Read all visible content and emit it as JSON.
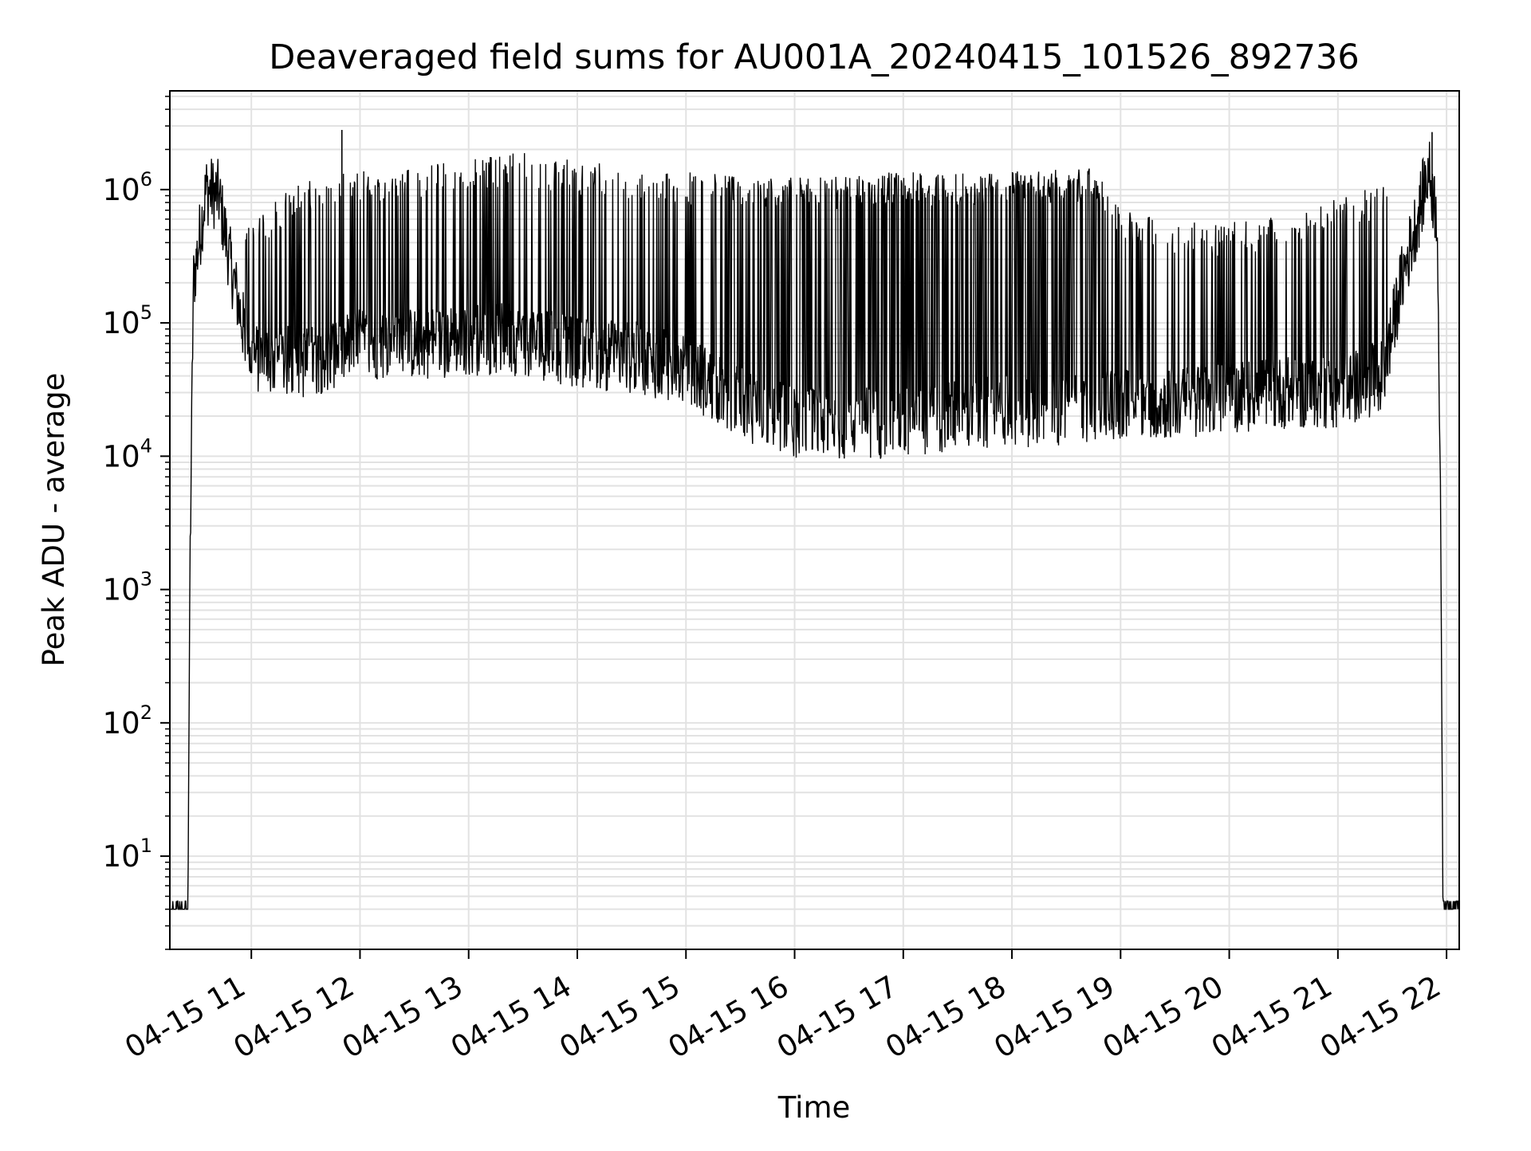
{
  "chart_data": {
    "type": "line",
    "title": "Deaveraged field sums for AU001A_20240415_101526_892736",
    "xlabel": "Time",
    "ylabel": "Peak ADU - average",
    "yscale": "log",
    "xlim": [
      "2024-04-15 10:15",
      "2024-04-15 22:07"
    ],
    "ylim": [
      2,
      5500000
    ],
    "grid": true,
    "x_ticks": [
      {
        "value": "2024-04-15 11:00",
        "label": "04-15 11"
      },
      {
        "value": "2024-04-15 12:00",
        "label": "04-15 12"
      },
      {
        "value": "2024-04-15 13:00",
        "label": "04-15 13"
      },
      {
        "value": "2024-04-15 14:00",
        "label": "04-15 14"
      },
      {
        "value": "2024-04-15 15:00",
        "label": "04-15 15"
      },
      {
        "value": "2024-04-15 16:00",
        "label": "04-15 16"
      },
      {
        "value": "2024-04-15 17:00",
        "label": "04-15 17"
      },
      {
        "value": "2024-04-15 18:00",
        "label": "04-15 18"
      },
      {
        "value": "2024-04-15 19:00",
        "label": "04-15 19"
      },
      {
        "value": "2024-04-15 20:00",
        "label": "04-15 20"
      },
      {
        "value": "2024-04-15 21:00",
        "label": "04-15 21"
      },
      {
        "value": "2024-04-15 22:00",
        "label": "04-15 22"
      }
    ],
    "y_ticks": [
      {
        "value": 10,
        "base": "10",
        "exp": "1"
      },
      {
        "value": 100,
        "base": "10",
        "exp": "2"
      },
      {
        "value": 1000,
        "base": "10",
        "exp": "3"
      },
      {
        "value": 10000,
        "base": "10",
        "exp": "4"
      },
      {
        "value": 100000,
        "base": "10",
        "exp": "5"
      },
      {
        "value": 1000000,
        "base": "10",
        "exp": "6"
      }
    ],
    "series": [
      {
        "color": "#000000",
        "baseline_envelope": [
          [
            "2024-04-15 10:15",
            4
          ],
          [
            "2024-04-15 10:25",
            4
          ],
          [
            "2024-04-15 10:26",
            1000
          ],
          [
            "2024-04-15 10:28",
            200000
          ],
          [
            "2024-04-15 10:35",
            1000000
          ],
          [
            "2024-04-15 10:42",
            900000
          ],
          [
            "2024-04-15 10:48",
            300000
          ],
          [
            "2024-04-15 10:55",
            100000
          ],
          [
            "2024-04-15 11:00",
            55000
          ],
          [
            "2024-04-15 11:30",
            50000
          ],
          [
            "2024-04-15 12:00",
            70000
          ],
          [
            "2024-04-15 12:30",
            70000
          ],
          [
            "2024-04-15 13:00",
            75000
          ],
          [
            "2024-04-15 13:30",
            75000
          ],
          [
            "2024-04-15 14:00",
            60000
          ],
          [
            "2024-04-15 14:30",
            55000
          ],
          [
            "2024-04-15 15:00",
            45000
          ],
          [
            "2024-04-15 15:30",
            25000
          ],
          [
            "2024-04-15 16:00",
            18000
          ],
          [
            "2024-04-15 16:30",
            18000
          ],
          [
            "2024-04-15 17:00",
            18000
          ],
          [
            "2024-04-15 17:30",
            20000
          ],
          [
            "2024-04-15 18:00",
            22000
          ],
          [
            "2024-04-15 18:30",
            22000
          ],
          [
            "2024-04-15 18:50",
            25000
          ],
          [
            "2024-04-15 19:30",
            25000
          ],
          [
            "2024-04-15 20:00",
            28000
          ],
          [
            "2024-04-15 20:30",
            30000
          ],
          [
            "2024-04-15 21:00",
            30000
          ],
          [
            "2024-04-15 21:25",
            40000
          ],
          [
            "2024-04-15 21:35",
            200000
          ],
          [
            "2024-04-15 21:45",
            700000
          ],
          [
            "2024-04-15 21:50",
            1400000
          ],
          [
            "2024-04-15 21:55",
            600000
          ],
          [
            "2024-04-15 21:57",
            1000
          ],
          [
            "2024-04-15 21:58",
            4
          ],
          [
            "2024-04-15 22:07",
            4
          ]
        ],
        "spike_envelope": [
          [
            "2024-04-15 10:55",
            400000
          ],
          [
            "2024-04-15 11:30",
            1000000
          ],
          [
            "2024-04-15 12:00",
            1100000
          ],
          [
            "2024-04-15 12:30",
            1200000
          ],
          [
            "2024-04-15 13:00",
            1400000
          ],
          [
            "2024-04-15 13:30",
            1500000
          ],
          [
            "2024-04-15 14:00",
            1300000
          ],
          [
            "2024-04-15 14:30",
            1200000
          ],
          [
            "2024-04-15 15:00",
            1100000
          ],
          [
            "2024-04-15 15:30",
            1000000
          ],
          [
            "2024-04-15 16:00",
            1000000
          ],
          [
            "2024-04-15 16:30",
            1000000
          ],
          [
            "2024-04-15 17:00",
            1100000
          ],
          [
            "2024-04-15 17:30",
            1050000
          ],
          [
            "2024-04-15 18:00",
            1100000
          ],
          [
            "2024-04-15 18:45",
            1150000
          ],
          [
            "2024-04-15 19:00",
            600000
          ],
          [
            "2024-04-15 19:30",
            450000
          ],
          [
            "2024-04-15 20:00",
            450000
          ],
          [
            "2024-04-15 20:30",
            500000
          ],
          [
            "2024-04-15 21:00",
            700000
          ],
          [
            "2024-04-15 21:30",
            900000
          ]
        ],
        "dense_band": [
          "2024-04-15 15:20",
          "2024-04-15 18:50",
          1000000
        ],
        "outliers": [
          [
            "2024-04-15 11:50",
            2800000
          ],
          [
            "2024-04-15 21:52",
            2700000
          ],
          [
            "2024-04-15 10:38",
            1600000
          ]
        ]
      }
    ]
  }
}
